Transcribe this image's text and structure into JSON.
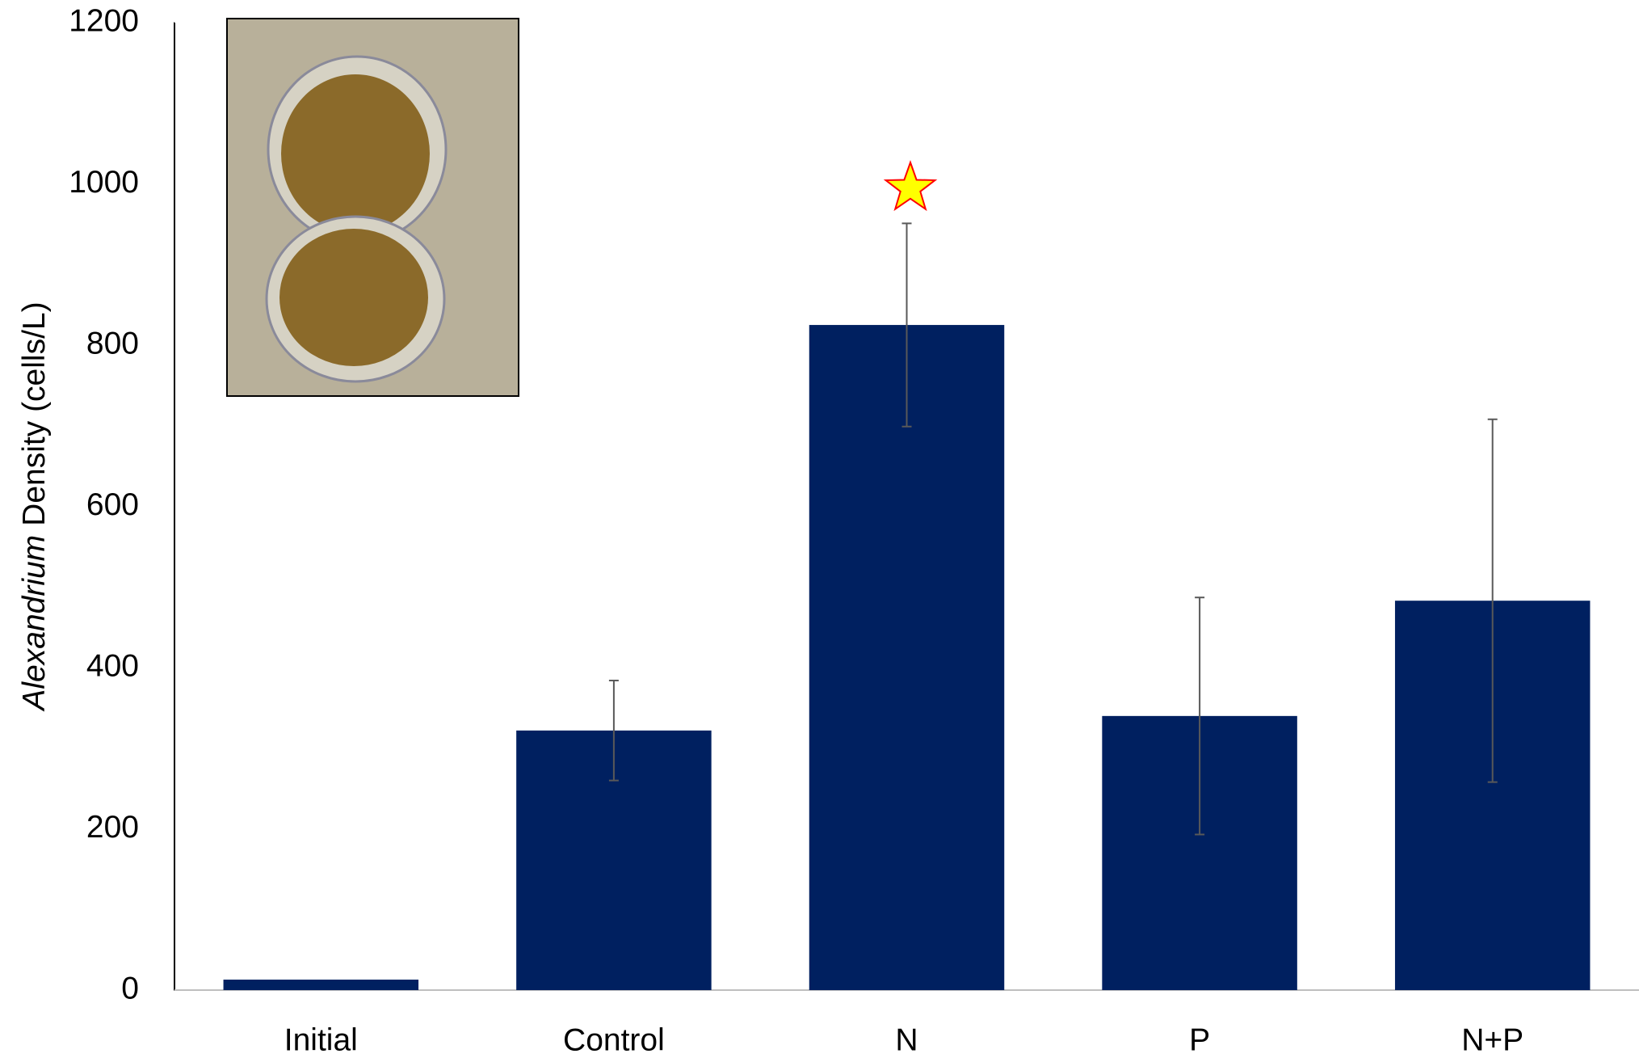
{
  "chart_data": {
    "type": "bar",
    "ylabel_italic": "Alexandrium",
    "ylabel_rest": "Density (cells/L)",
    "categories": [
      "Initial",
      "Control",
      "N",
      "P",
      "N+P"
    ],
    "values": [
      13,
      322,
      825,
      340,
      483
    ],
    "errors": [
      0,
      62,
      126,
      147,
      225
    ],
    "color": "#002060",
    "error_color": "#595959",
    "ylim": [
      0,
      1200
    ],
    "yticks": [
      0,
      200,
      400,
      600,
      800,
      1000,
      1200
    ],
    "grid": false
  }
}
